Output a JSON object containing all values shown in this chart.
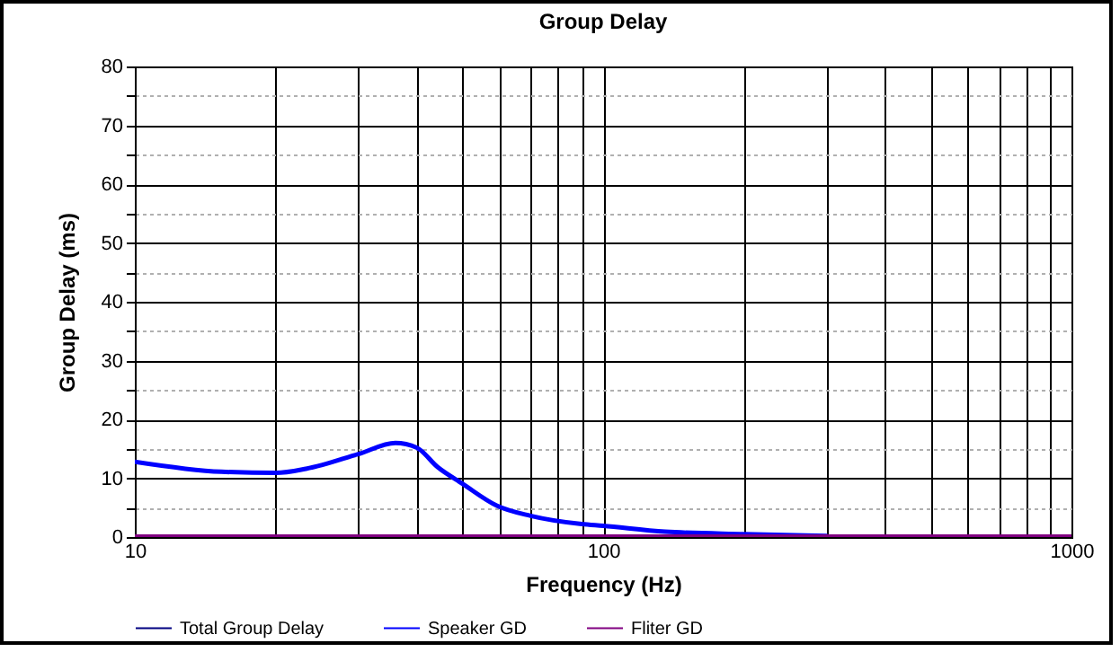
{
  "chart_data": {
    "type": "line",
    "title": "Group Delay",
    "xlabel": "Frequency (Hz)",
    "ylabel": "Group Delay (ms)",
    "log": "x",
    "grid": true,
    "legend": "bottom",
    "x": [
      10,
      15.3,
      20,
      23.2,
      30,
      36,
      40,
      44.3,
      50,
      59.4,
      70,
      90,
      100,
      135.6,
      200,
      300,
      500,
      1000
    ],
    "xlim": [
      10,
      1000
    ],
    "xticks": [
      10,
      {
        "value": 20,
        "label": null
      },
      {
        "value": 30,
        "label": null
      },
      {
        "value": 40,
        "label": null
      },
      {
        "value": 50,
        "label": null
      },
      {
        "value": 60,
        "label": null
      },
      {
        "value": 70,
        "label": null
      },
      {
        "value": 80,
        "label": null
      },
      {
        "value": 90,
        "label": null
      },
      100,
      {
        "value": 200,
        "label": null
      },
      {
        "value": 300,
        "label": null
      },
      {
        "value": 400,
        "label": null
      },
      {
        "value": 500,
        "label": null
      },
      {
        "value": 600,
        "label": null
      },
      {
        "value": 700,
        "label": null
      },
      {
        "value": 800,
        "label": null
      },
      {
        "value": 900,
        "label": null
      },
      1000
    ],
    "ylim": [
      0,
      80
    ],
    "yticks": [
      0,
      {
        "value": 5,
        "label": null
      },
      10,
      {
        "value": 15,
        "label": null
      },
      20,
      {
        "value": 25,
        "label": null
      },
      30,
      {
        "value": 35,
        "label": null
      },
      40,
      {
        "value": 45,
        "label": null
      },
      50,
      {
        "value": 55,
        "label": null
      },
      60,
      {
        "value": 65,
        "label": null
      },
      70,
      {
        "value": 75,
        "label": null
      },
      80
    ],
    "series": [
      {
        "name": "Total Group Delay",
        "color": "#000080",
        "values": [
          null,
          null,
          null,
          null,
          null,
          null,
          null,
          null,
          null,
          null,
          null,
          null,
          null,
          null,
          null,
          null,
          null,
          null
        ]
      },
      {
        "name": "Speaker GD",
        "color": "#0000ff",
        "values": [
          12.8,
          11.1,
          10.9,
          11.6,
          14.1,
          16.0,
          15.2,
          11.9,
          9.1,
          5.3,
          3.6,
          2.2,
          1.9,
          0.9,
          0.5,
          0.2,
          null,
          null
        ]
      },
      {
        "name": "Fliter GD",
        "color": "#800080",
        "values": [
          0,
          0,
          0,
          0,
          0,
          0,
          0,
          0,
          0,
          0,
          0,
          0,
          0,
          0,
          0,
          0,
          0,
          0
        ]
      }
    ]
  }
}
